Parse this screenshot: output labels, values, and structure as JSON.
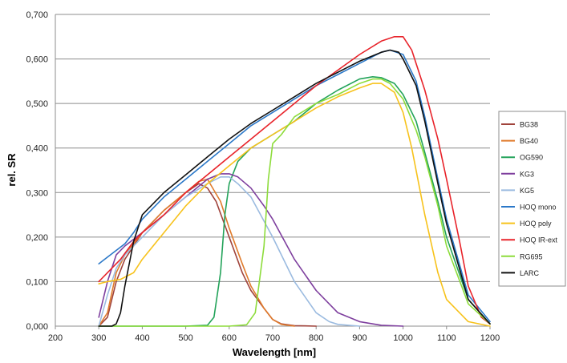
{
  "chart_data": {
    "type": "line",
    "title": "",
    "xlabel": "Wavelength [nm]",
    "ylabel": "rel. SR",
    "xlim": [
      200,
      1200
    ],
    "ylim": [
      0,
      0.7
    ],
    "x_ticks": [
      "200",
      "300",
      "400",
      "500",
      "600",
      "700",
      "800",
      "900",
      "1000",
      "1100",
      "1200"
    ],
    "y_ticks": [
      "0,000",
      "0,100",
      "0,200",
      "0,300",
      "0,400",
      "0,500",
      "0,600",
      "0,700"
    ],
    "grid": "horizontal",
    "legend_position": "right",
    "series": [
      {
        "name": "BG38",
        "color": "#a0433b",
        "x": [
          300,
          320,
          340,
          360,
          400,
          450,
          500,
          530,
          550,
          570,
          600,
          630,
          650,
          680,
          700,
          720,
          750,
          800
        ],
        "y": [
          0,
          0.02,
          0.1,
          0.15,
          0.21,
          0.26,
          0.3,
          0.32,
          0.31,
          0.28,
          0.2,
          0.12,
          0.08,
          0.04,
          0.015,
          0.005,
          0.001,
          0
        ]
      },
      {
        "name": "BG40",
        "color": "#e07b2c",
        "x": [
          300,
          320,
          340,
          360,
          400,
          450,
          500,
          530,
          550,
          580,
          600,
          630,
          650,
          680,
          700,
          720,
          750
        ],
        "y": [
          0,
          0.03,
          0.12,
          0.16,
          0.21,
          0.26,
          0.3,
          0.325,
          0.33,
          0.28,
          0.22,
          0.14,
          0.09,
          0.04,
          0.015,
          0.004,
          0
        ]
      },
      {
        "name": "OG590",
        "color": "#23a35a",
        "x": [
          300,
          500,
          550,
          565,
          580,
          590,
          600,
          620,
          650,
          700,
          750,
          800,
          850,
          900,
          930,
          950,
          980,
          1000,
          1030,
          1050,
          1080,
          1100,
          1150,
          1200
        ],
        "y": [
          0,
          0,
          0.002,
          0.02,
          0.12,
          0.25,
          0.32,
          0.37,
          0.4,
          0.43,
          0.46,
          0.5,
          0.53,
          0.555,
          0.56,
          0.558,
          0.545,
          0.52,
          0.46,
          0.39,
          0.28,
          0.2,
          0.06,
          0.005
        ]
      },
      {
        "name": "KG3",
        "color": "#7e3f9e",
        "x": [
          300,
          320,
          340,
          360,
          400,
          450,
          500,
          550,
          580,
          600,
          620,
          650,
          680,
          700,
          750,
          800,
          850,
          900,
          950,
          1000
        ],
        "y": [
          0.02,
          0.1,
          0.16,
          0.18,
          0.21,
          0.25,
          0.29,
          0.33,
          0.342,
          0.342,
          0.335,
          0.31,
          0.27,
          0.24,
          0.15,
          0.08,
          0.03,
          0.01,
          0.002,
          0
        ]
      },
      {
        "name": "KG5",
        "color": "#9bbbe0",
        "x": [
          300,
          320,
          340,
          360,
          400,
          450,
          500,
          550,
          580,
          600,
          620,
          650,
          700,
          750,
          800,
          830,
          850,
          900
        ],
        "y": [
          0,
          0.07,
          0.13,
          0.16,
          0.2,
          0.25,
          0.29,
          0.32,
          0.335,
          0.335,
          0.32,
          0.29,
          0.2,
          0.1,
          0.03,
          0.01,
          0.004,
          0
        ]
      },
      {
        "name": "HOQ mono",
        "color": "#2b78c8",
        "x": [
          300,
          320,
          340,
          360,
          380,
          400,
          450,
          500,
          550,
          600,
          650,
          700,
          750,
          800,
          850,
          900,
          950,
          970,
          1000,
          1030,
          1050,
          1080,
          1100,
          1150,
          1200
        ],
        "y": [
          0.14,
          0.155,
          0.17,
          0.185,
          0.21,
          0.24,
          0.29,
          0.33,
          0.37,
          0.41,
          0.45,
          0.48,
          0.51,
          0.54,
          0.565,
          0.59,
          0.615,
          0.62,
          0.61,
          0.55,
          0.47,
          0.33,
          0.24,
          0.07,
          0.01
        ]
      },
      {
        "name": "HOQ poly",
        "color": "#f7c21b",
        "x": [
          300,
          320,
          350,
          380,
          400,
          450,
          500,
          550,
          600,
          650,
          700,
          750,
          800,
          850,
          900,
          930,
          950,
          980,
          1000,
          1020,
          1050,
          1080,
          1100,
          1150,
          1200
        ],
        "y": [
          0.095,
          0.1,
          0.105,
          0.12,
          0.15,
          0.21,
          0.27,
          0.32,
          0.36,
          0.4,
          0.43,
          0.46,
          0.49,
          0.515,
          0.535,
          0.545,
          0.545,
          0.525,
          0.48,
          0.4,
          0.25,
          0.12,
          0.06,
          0.01,
          0
        ]
      },
      {
        "name": "HOQ IR-ext",
        "color": "#e8232a",
        "x": [
          300,
          320,
          350,
          380,
          400,
          450,
          500,
          550,
          600,
          650,
          700,
          750,
          800,
          850,
          900,
          950,
          980,
          1000,
          1020,
          1050,
          1080,
          1100,
          1130,
          1150,
          1180,
          1200
        ],
        "y": [
          0.1,
          0.12,
          0.15,
          0.19,
          0.21,
          0.25,
          0.3,
          0.34,
          0.38,
          0.42,
          0.46,
          0.5,
          0.54,
          0.575,
          0.61,
          0.64,
          0.65,
          0.65,
          0.62,
          0.53,
          0.42,
          0.33,
          0.19,
          0.09,
          0.02,
          0.005
        ]
      },
      {
        "name": "RG695",
        "color": "#8ddc3b",
        "x": [
          300,
          600,
          640,
          660,
          680,
          690,
          700,
          720,
          750,
          800,
          850,
          900,
          930,
          950,
          970,
          1000,
          1030,
          1050,
          1080,
          1100,
          1150,
          1200
        ],
        "y": [
          0,
          0,
          0.003,
          0.03,
          0.18,
          0.33,
          0.41,
          0.43,
          0.47,
          0.5,
          0.52,
          0.545,
          0.555,
          0.555,
          0.545,
          0.51,
          0.44,
          0.38,
          0.27,
          0.18,
          0.05,
          0.005
        ]
      },
      {
        "name": "LARC",
        "color": "#111111",
        "x": [
          300,
          330,
          340,
          350,
          360,
          380,
          400,
          450,
          500,
          550,
          600,
          650,
          700,
          750,
          800,
          850,
          900,
          950,
          970,
          990,
          1000,
          1030,
          1050,
          1080,
          1100,
          1150,
          1200
        ],
        "y": [
          0,
          0,
          0.005,
          0.03,
          0.09,
          0.19,
          0.25,
          0.3,
          0.34,
          0.38,
          0.42,
          0.455,
          0.485,
          0.515,
          0.545,
          0.57,
          0.595,
          0.615,
          0.62,
          0.615,
          0.6,
          0.54,
          0.46,
          0.32,
          0.23,
          0.06,
          0.005
        ]
      }
    ]
  }
}
